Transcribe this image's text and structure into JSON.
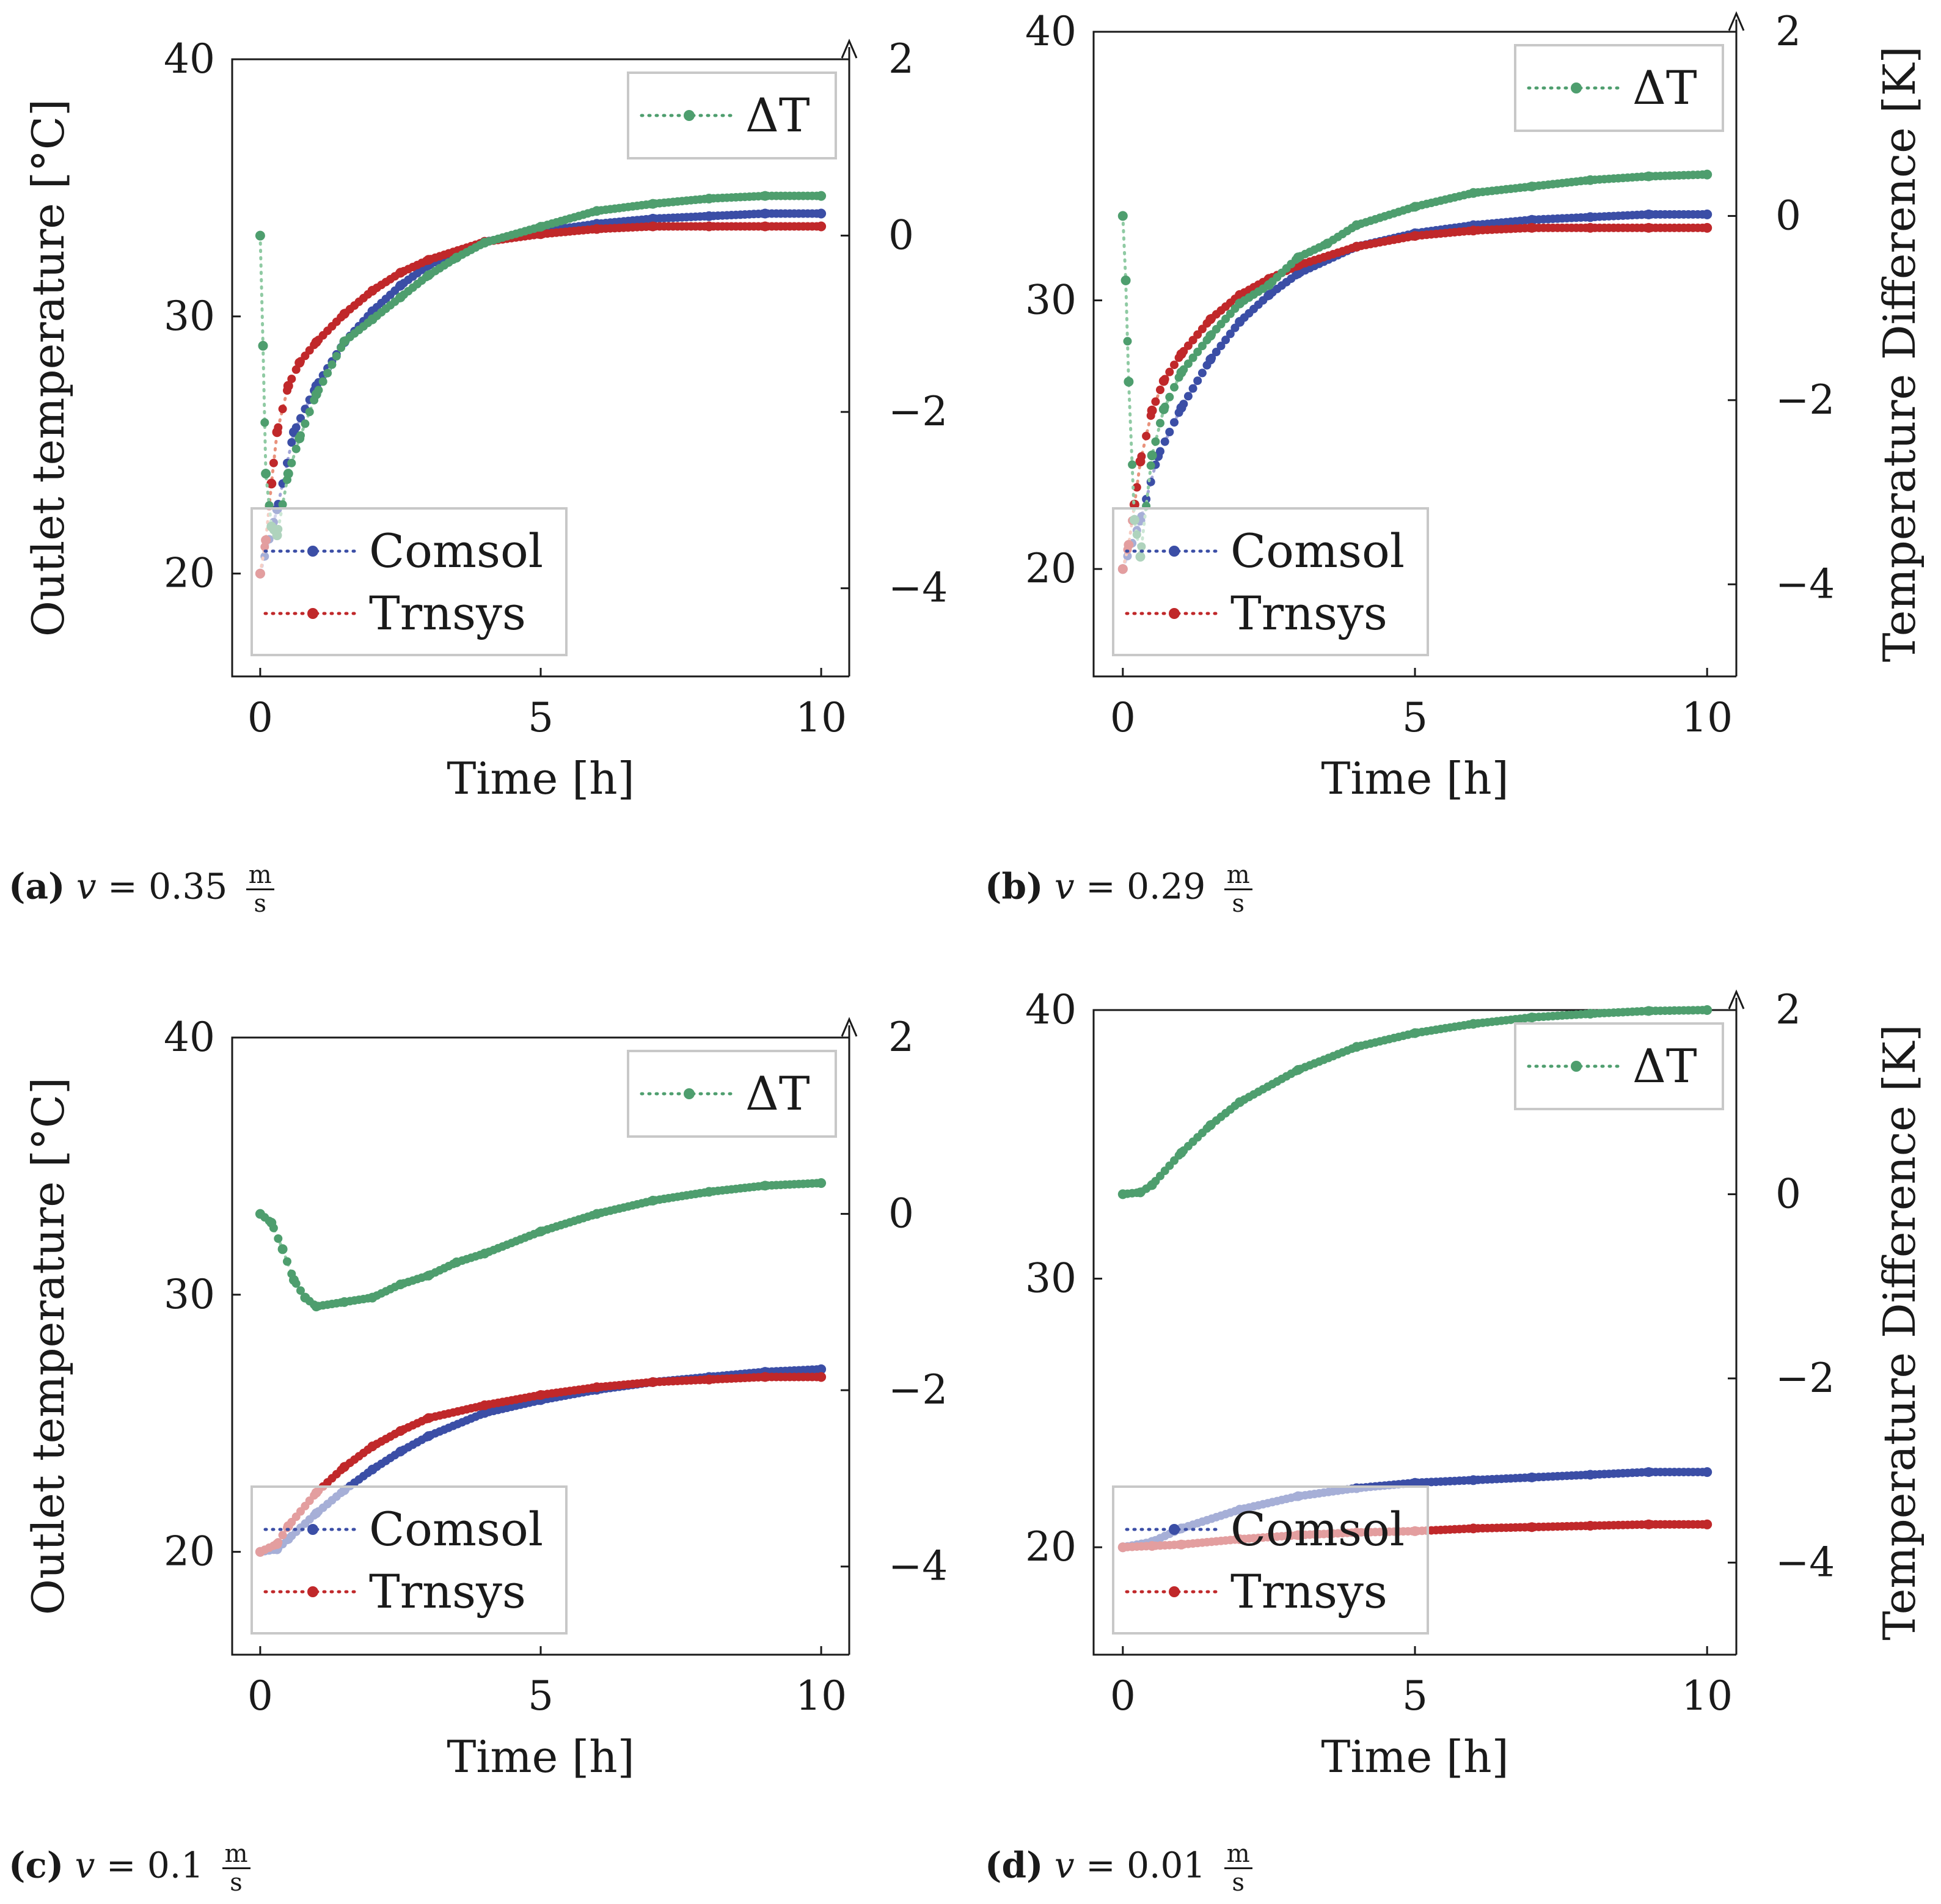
{
  "colors": {
    "comsol": "#3b4ea6",
    "comsol_light": "#a3a6d8",
    "trnsys": "#c0282a",
    "trnsys_light": "#e9927c",
    "delta": "#4e9e6e",
    "delta_light": "#8fcaa3",
    "axis": "#1a1a1a",
    "legend_border": "#c8c8c8"
  },
  "figure_text": {
    "left_ylabel": "Outlet temperature [°C]",
    "right_ylabel": "Temperature Difference [K]",
    "xlabel": "Time [h]",
    "legend_comsol": "Comsol",
    "legend_trnsys": "Trnsys",
    "legend_delta": "ΔT"
  },
  "captions": {
    "a": {
      "label": "(a)",
      "var": "v",
      "eq": " = 0.35",
      "num": "m",
      "den": "s"
    },
    "b": {
      "label": "(b)",
      "var": "v",
      "eq": " = 0.29",
      "num": "m",
      "den": "s"
    },
    "c": {
      "label": "(c)",
      "var": "v",
      "eq": " = 0.1",
      "num": "m",
      "den": "s"
    },
    "d": {
      "label": "(d)",
      "var": "v",
      "eq": " = 0.01",
      "num": "m",
      "den": "s"
    }
  },
  "chart_data": [
    {
      "id": "a",
      "type": "line",
      "title": "(a) v = 0.35 m/s",
      "xlabel": "Time [h]",
      "ylabel": "Outlet temperature [°C]",
      "y2label": "Temperature Difference [K]",
      "xlim": [
        -0.5,
        10.5
      ],
      "ylim": [
        16,
        40
      ],
      "y2lim": [
        -5,
        2
      ],
      "xticks": [
        0,
        5,
        10
      ],
      "yticks": [
        20,
        30,
        40
      ],
      "y2ticks": [
        -4,
        -2,
        0,
        2
      ],
      "show_left_label": true,
      "show_right_label": false,
      "series": [
        {
          "name": "Comsol",
          "axis": "left",
          "key": "comsol",
          "x": [
            0,
            0.3,
            0.6,
            1,
            1.5,
            2,
            2.5,
            3,
            4,
            5,
            6,
            7,
            8,
            9,
            10
          ],
          "y": [
            20,
            22.5,
            25.5,
            27.3,
            29.0,
            30.2,
            31.2,
            32.0,
            32.9,
            33.3,
            33.6,
            33.8,
            33.9,
            34.0,
            34.0
          ]
        },
        {
          "name": "Trnsys",
          "axis": "left",
          "key": "trnsys",
          "x": [
            0,
            0.1,
            0.2,
            0.3,
            0.5,
            0.7,
            1,
            1.5,
            2,
            2.5,
            3,
            4,
            5,
            6,
            7,
            8,
            9,
            10
          ],
          "y": [
            20,
            21.3,
            23.5,
            25.5,
            27.3,
            28.2,
            29.0,
            30.1,
            31.0,
            31.7,
            32.2,
            32.9,
            33.2,
            33.4,
            33.5,
            33.5,
            33.5,
            33.5
          ]
        },
        {
          "name": "ΔT",
          "axis": "right",
          "key": "delta",
          "x": [
            0,
            0.05,
            0.1,
            0.2,
            0.3,
            0.5,
            0.7,
            1,
            1.5,
            2,
            2.5,
            3,
            3.5,
            4,
            5,
            6,
            7,
            8,
            9,
            10
          ],
          "y": [
            0.0,
            -1.25,
            -2.7,
            -3.3,
            -3.4,
            -2.7,
            -2.3,
            -1.8,
            -1.2,
            -0.95,
            -0.7,
            -0.45,
            -0.25,
            -0.08,
            0.1,
            0.28,
            0.36,
            0.42,
            0.45,
            0.45
          ]
        }
      ],
      "legend_position": "bottom-left",
      "legend2_position": "top-right"
    },
    {
      "id": "b",
      "type": "line",
      "title": "(b) v = 0.29 m/s",
      "xlabel": "Time [h]",
      "ylabel": "Outlet temperature [°C]",
      "y2label": "Temperature Difference [K]",
      "xlim": [
        -0.5,
        10.5
      ],
      "ylim": [
        16,
        40
      ],
      "y2lim": [
        -5,
        2
      ],
      "xticks": [
        0,
        5,
        10
      ],
      "yticks": [
        20,
        30,
        40
      ],
      "y2ticks": [
        -4,
        -2,
        0,
        2
      ],
      "show_left_label": false,
      "show_right_label": true,
      "series": [
        {
          "name": "Comsol",
          "axis": "left",
          "key": "comsol",
          "x": [
            0,
            0.3,
            0.6,
            1,
            1.5,
            2,
            2.5,
            3,
            4,
            5,
            6,
            7,
            8,
            9,
            10
          ],
          "y": [
            20,
            21.8,
            24.2,
            26.0,
            27.8,
            29.2,
            30.2,
            31.0,
            32.0,
            32.5,
            32.8,
            33.0,
            33.1,
            33.2,
            33.2
          ]
        },
        {
          "name": "Trnsys",
          "axis": "left",
          "key": "trnsys",
          "x": [
            0,
            0.1,
            0.2,
            0.3,
            0.5,
            0.7,
            1,
            1.5,
            2,
            2.5,
            3,
            4,
            5,
            6,
            7,
            8,
            9,
            10
          ],
          "y": [
            20,
            20.9,
            22.4,
            24.0,
            25.9,
            27.0,
            28.0,
            29.3,
            30.2,
            30.8,
            31.3,
            32.0,
            32.4,
            32.6,
            32.7,
            32.7,
            32.7,
            32.7
          ]
        },
        {
          "name": "ΔT",
          "axis": "right",
          "key": "delta",
          "x": [
            0,
            0.05,
            0.1,
            0.2,
            0.3,
            0.5,
            0.7,
            1,
            1.5,
            2,
            2.5,
            3,
            3.5,
            4,
            5,
            6,
            7,
            8,
            9,
            10
          ],
          "y": [
            0.0,
            -0.7,
            -1.8,
            -3.3,
            -3.7,
            -2.6,
            -2.1,
            -1.7,
            -1.3,
            -0.95,
            -0.75,
            -0.45,
            -0.3,
            -0.1,
            0.1,
            0.25,
            0.32,
            0.39,
            0.43,
            0.45
          ]
        }
      ],
      "legend_position": "bottom-left",
      "legend2_position": "top-right"
    },
    {
      "id": "c",
      "type": "line",
      "title": "(c) v = 0.1 m/s",
      "xlabel": "Time [h]",
      "ylabel": "Outlet temperature [°C]",
      "y2label": "Temperature Difference [K]",
      "xlim": [
        -0.5,
        10.5
      ],
      "ylim": [
        16,
        40
      ],
      "y2lim": [
        -5,
        2
      ],
      "xticks": [
        0,
        5,
        10
      ],
      "yticks": [
        20,
        30,
        40
      ],
      "y2ticks": [
        -4,
        -2,
        0,
        2
      ],
      "show_left_label": true,
      "show_right_label": false,
      "series": [
        {
          "name": "Comsol",
          "axis": "left",
          "key": "comsol",
          "x": [
            0,
            0.3,
            0.5,
            1,
            1.5,
            2,
            2.5,
            3,
            4,
            5,
            6,
            7,
            8,
            9,
            10
          ],
          "y": [
            20,
            20.1,
            20.5,
            21.5,
            22.4,
            23.2,
            23.9,
            24.5,
            25.4,
            25.9,
            26.3,
            26.6,
            26.8,
            27.0,
            27.1
          ]
        },
        {
          "name": "Trnsys",
          "axis": "left",
          "key": "trnsys",
          "x": [
            0,
            0.3,
            0.5,
            1,
            1.5,
            2,
            2.5,
            3,
            4,
            5,
            6,
            7,
            8,
            9,
            10
          ],
          "y": [
            20,
            20.3,
            21.0,
            22.3,
            23.3,
            24.1,
            24.7,
            25.2,
            25.7,
            26.1,
            26.4,
            26.6,
            26.7,
            26.8,
            26.8
          ]
        },
        {
          "name": "ΔT",
          "axis": "right",
          "key": "delta",
          "x": [
            0,
            0.2,
            0.4,
            0.6,
            0.8,
            1,
            1.5,
            2,
            2.5,
            3,
            3.5,
            4,
            5,
            6,
            7,
            8,
            9,
            10
          ],
          "y": [
            0.0,
            -0.1,
            -0.4,
            -0.75,
            -0.95,
            -1.05,
            -1.0,
            -0.95,
            -0.8,
            -0.7,
            -0.55,
            -0.45,
            -0.2,
            0.0,
            0.15,
            0.25,
            0.32,
            0.35
          ]
        }
      ],
      "legend_position": "bottom-left",
      "legend2_position": "top-right"
    },
    {
      "id": "d",
      "type": "line",
      "title": "(d) v = 0.01 m/s",
      "xlabel": "Time [h]",
      "ylabel": "Outlet temperature [°C]",
      "y2label": "Temperature Difference [K]",
      "xlim": [
        -0.5,
        10.5
      ],
      "ylim": [
        16,
        40
      ],
      "y2lim": [
        -5,
        2
      ],
      "xticks": [
        0,
        5,
        10
      ],
      "yticks": [
        20,
        30,
        40
      ],
      "y2ticks": [
        -4,
        -2,
        0,
        2
      ],
      "show_left_label": false,
      "show_right_label": true,
      "series": [
        {
          "name": "Comsol",
          "axis": "left",
          "key": "comsol",
          "x": [
            0,
            0.5,
            1,
            2,
            3,
            4,
            5,
            6,
            7,
            8,
            9,
            10
          ],
          "y": [
            20,
            20.2,
            20.7,
            21.4,
            21.9,
            22.2,
            22.4,
            22.5,
            22.6,
            22.7,
            22.8,
            22.8
          ]
        },
        {
          "name": "Trnsys",
          "axis": "left",
          "key": "trnsys",
          "x": [
            0,
            0.5,
            1,
            2,
            3,
            4,
            5,
            6,
            7,
            8,
            9,
            10
          ],
          "y": [
            20,
            20.05,
            20.1,
            20.3,
            20.45,
            20.55,
            20.6,
            20.7,
            20.75,
            20.8,
            20.85,
            20.85
          ]
        },
        {
          "name": "ΔT",
          "axis": "right",
          "key": "delta",
          "x": [
            0,
            0.3,
            0.5,
            1,
            1.5,
            2,
            3,
            4,
            5,
            6,
            7,
            8,
            9,
            10
          ],
          "y": [
            0.0,
            0.02,
            0.1,
            0.45,
            0.75,
            1.0,
            1.35,
            1.6,
            1.75,
            1.85,
            1.92,
            1.96,
            1.99,
            2.0
          ]
        }
      ],
      "legend_position": "bottom-left",
      "legend2_position": "top-right"
    }
  ]
}
